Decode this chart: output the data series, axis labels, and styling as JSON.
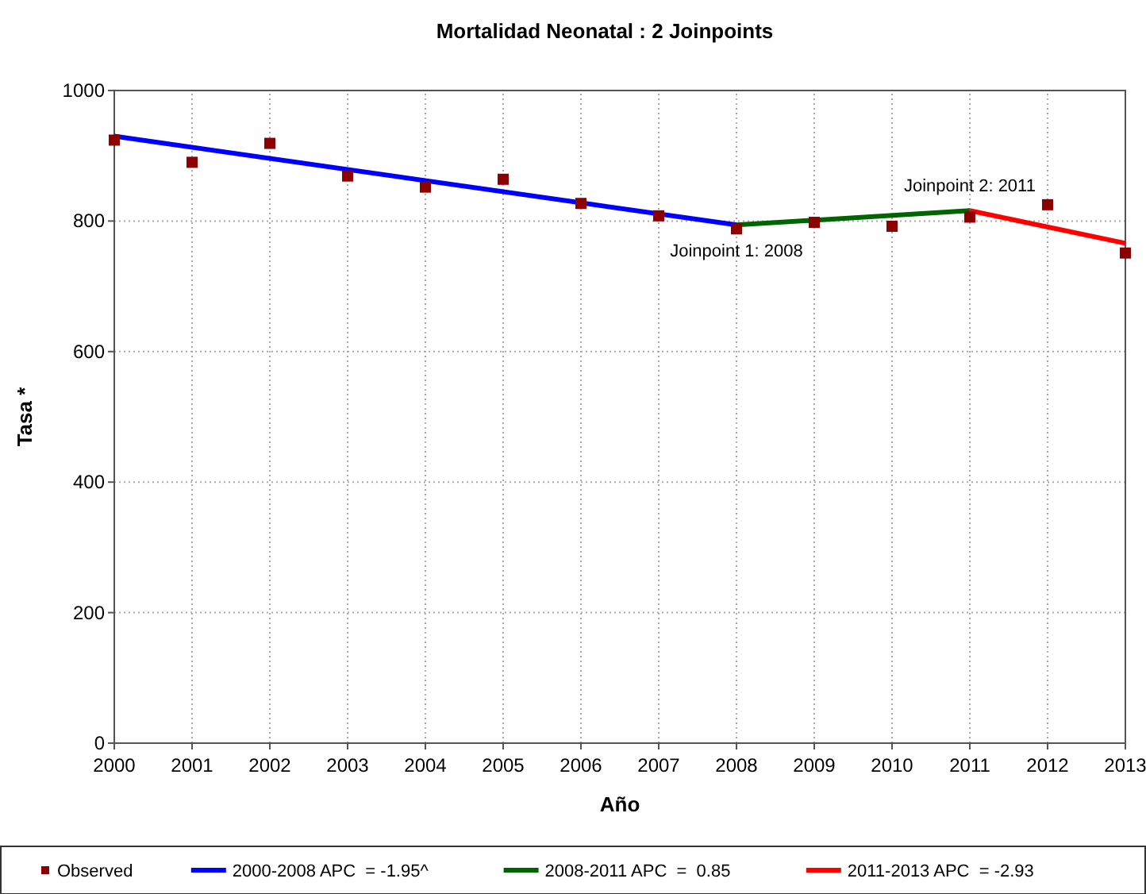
{
  "chart_data": {
    "type": "line",
    "title": "Mortalidad Neonatal : 2 Joinpoints",
    "xlabel": "Año",
    "ylabel": "Tasa *",
    "xlim": [
      2000,
      2013
    ],
    "xticks": [
      2000,
      2001,
      2002,
      2003,
      2004,
      2005,
      2006,
      2007,
      2008,
      2009,
      2010,
      2011,
      2012,
      2013
    ],
    "ylim": [
      0,
      1000
    ],
    "yticks": [
      0,
      200,
      400,
      600,
      800,
      1000
    ],
    "grid": true,
    "legend": "bottom",
    "series": [
      {
        "name": "Observed",
        "type": "scatter",
        "marker": "square",
        "color": "#8b0000",
        "x": [
          2000,
          2001,
          2002,
          2003,
          2004,
          2005,
          2006,
          2007,
          2008,
          2009,
          2010,
          2011,
          2012,
          2013
        ],
        "values": [
          924,
          890,
          919,
          869,
          852,
          864,
          827,
          808,
          788,
          798,
          792,
          806,
          825,
          751
        ]
      },
      {
        "name": "2000-2008 APC  = -1.95^",
        "type": "line",
        "color": "#0000ff",
        "x": [
          2000,
          2008
        ],
        "values": [
          930,
          794
        ]
      },
      {
        "name": "2008-2011 APC  =  0.85",
        "type": "line",
        "color": "#006400",
        "x": [
          2008,
          2011
        ],
        "values": [
          794,
          816
        ]
      },
      {
        "name": "2011-2013 APC  = -2.93",
        "type": "line",
        "color": "#ff0000",
        "x": [
          2011,
          2013
        ],
        "values": [
          816,
          766
        ]
      }
    ],
    "annotations": [
      {
        "text": "Joinpoint 1:  2008",
        "x": 2008,
        "y": 794
      },
      {
        "text": "Joinpoint 2:  2011",
        "x": 2011,
        "y": 816
      }
    ]
  }
}
